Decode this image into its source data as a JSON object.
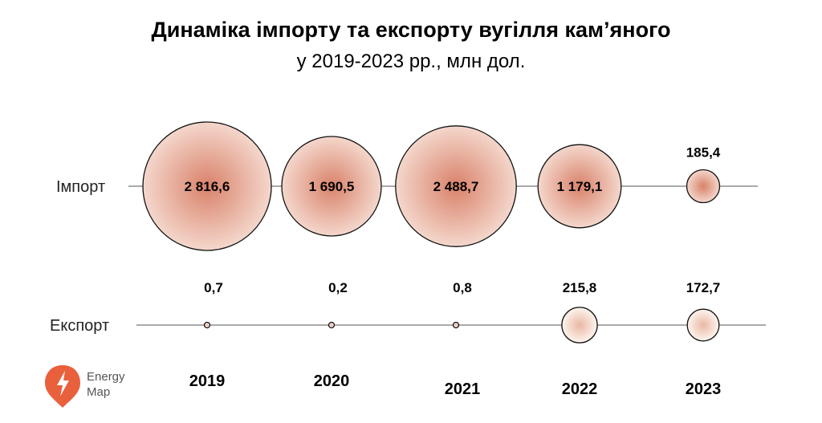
{
  "chart_data": {
    "type": "bubble",
    "title": "Динаміка імпорту та експорту вугілля кам’яного",
    "subtitle": "у 2019-2023 рр., млн дол.",
    "categories": [
      "2019",
      "2020",
      "2021",
      "2022",
      "2023"
    ],
    "series": [
      {
        "name": "Імпорт",
        "values": [
          2816.6,
          1690.5,
          2488.7,
          1179.1,
          185.4
        ],
        "labels": [
          "2 816,6",
          "1 690,5",
          "2 488,7",
          "1 179,1",
          "185,4"
        ]
      },
      {
        "name": "Експорт",
        "values": [
          0.7,
          0.2,
          0.8,
          215.8,
          172.7
        ],
        "labels": [
          "0,7",
          "0,2",
          "0,8",
          "215,8",
          "172,7"
        ]
      }
    ]
  },
  "logo": {
    "line1": "Energy",
    "line2": "Map",
    "accent": "#e8603c"
  },
  "colors": {
    "import_edge": "#d99a86",
    "import_center": "#d9826a",
    "export_edge": "#faeee6",
    "export_center": "#e9b39d"
  }
}
